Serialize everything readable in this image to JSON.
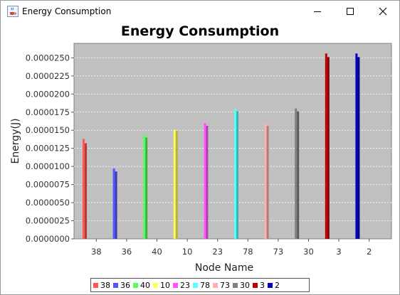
{
  "window": {
    "title": "Energy Consumption",
    "minimize_icon": "minimize-icon",
    "maximize_icon": "maximize-icon",
    "close_icon": "close-icon",
    "app_icon": "java-cup-icon"
  },
  "chart_data": {
    "type": "bar",
    "title": "Energy Consumption",
    "xlabel": "Node Name",
    "ylabel": "Energy(J)",
    "ylim": [
      0,
      2.7e-05
    ],
    "yticks": [
      "0.0000000",
      "0.0000025",
      "0.0000050",
      "0.0000075",
      "0.0000100",
      "0.0000125",
      "0.0000150",
      "0.0000175",
      "0.0000200",
      "0.0000225",
      "0.0000250"
    ],
    "categories": [
      "38",
      "36",
      "40",
      "10",
      "23",
      "78",
      "73",
      "30",
      "3",
      "2"
    ],
    "colors": [
      "#ff5555",
      "#5555ff",
      "#55ff55",
      "#ffff55",
      "#ff55ff",
      "#55ffff",
      "#ffafaf",
      "#808080",
      "#c00000",
      "#0000c0"
    ],
    "bars": [
      {
        "name": "38",
        "values": [
          1.38e-05,
          1.32e-05
        ]
      },
      {
        "name": "36",
        "values": [
          9.7e-06,
          9.3e-06
        ]
      },
      {
        "name": "40",
        "values": [
          1.44e-05,
          1.4e-05
        ]
      },
      {
        "name": "10",
        "values": [
          1.51e-05,
          1.49e-05
        ]
      },
      {
        "name": "23",
        "values": [
          1.6e-05,
          1.56e-05
        ]
      },
      {
        "name": "78",
        "values": [
          1.8e-05,
          1.76e-05
        ]
      },
      {
        "name": "73",
        "values": [
          1.6e-05,
          1.56e-05
        ]
      },
      {
        "name": "30",
        "values": [
          1.8e-05,
          1.76e-05
        ]
      },
      {
        "name": "3",
        "values": [
          2.56e-05,
          2.51e-05
        ]
      },
      {
        "name": "2",
        "values": [
          2.56e-05,
          2.51e-05
        ]
      }
    ],
    "grid": true,
    "legend_placement": "bottom"
  }
}
